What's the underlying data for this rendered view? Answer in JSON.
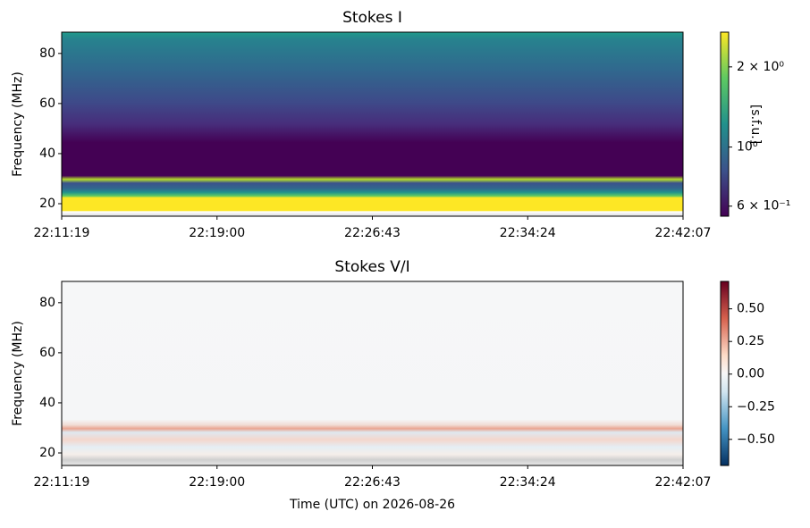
{
  "chart_data": [
    {
      "type": "heatmap",
      "title": "Stokes I",
      "ylabel": "Frequency (MHz)",
      "ylim": [
        15,
        88.5
      ],
      "yticks": [
        20,
        40,
        60,
        80
      ],
      "xticklabels": [
        "22:11:19",
        "22:19:00",
        "22:26:43",
        "22:34:24",
        "22:42:07"
      ],
      "colormap": "viridis",
      "colorbar": {
        "label": "[s.f.u.]",
        "log": true,
        "lim": [
          0.55,
          2.7
        ],
        "ticks": [
          {
            "value": 2,
            "label": "2 × 10⁰"
          },
          {
            "value": 1,
            "label": "10⁰"
          },
          {
            "value": 0.6,
            "label": "6 × 10⁻¹"
          }
        ]
      }
    },
    {
      "type": "heatmap",
      "title": "Stokes V/I",
      "ylabel": "Frequency (MHz)",
      "xlabel": "Time (UTC) on 2026-08-26",
      "ylim": [
        15,
        88.5
      ],
      "yticks": [
        20,
        40,
        60,
        80
      ],
      "xticklabels": [
        "22:11:19",
        "22:19:00",
        "22:26:43",
        "22:34:24",
        "22:42:07"
      ],
      "colormap": "RdBu_r",
      "colorbar": {
        "log": false,
        "lim": [
          -0.7,
          0.71
        ],
        "ticks": [
          {
            "value": 0.5,
            "label": "0.50"
          },
          {
            "value": 0.25,
            "label": "0.25"
          },
          {
            "value": 0,
            "label": "0.00"
          },
          {
            "value": -0.25,
            "label": "−0.25"
          },
          {
            "value": -0.5,
            "label": "−0.50"
          }
        ]
      }
    }
  ]
}
